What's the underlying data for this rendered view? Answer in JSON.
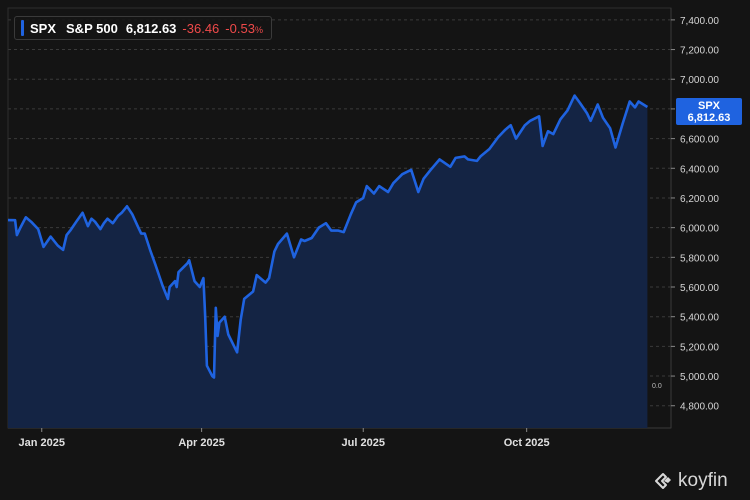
{
  "colors": {
    "background": "#141414",
    "line": "#1f63e0",
    "area": "#142444",
    "grid": "#3a3a3a",
    "negative": "#ef4a4a",
    "tag": "#1f63e0"
  },
  "legend": {
    "ticker": "SPX",
    "name": "S&P 500",
    "last": "6,812.63",
    "change": "-36.46",
    "change_pct": "-0.53",
    "pct_sign": "%"
  },
  "price_tag": {
    "ticker": "SPX",
    "value": "6,812.63"
  },
  "zero_label": "0.0",
  "brand": {
    "name": "koyfin",
    "icon": "koyfin-logo-icon"
  },
  "chart_data": {
    "type": "area",
    "ylim": [
      4650,
      7480
    ],
    "yticks": [
      {
        "value": 4800,
        "label": "4,800.00"
      },
      {
        "value": 5000,
        "label": "5,000.00"
      },
      {
        "value": 5200,
        "label": "5,200.00"
      },
      {
        "value": 5400,
        "label": "5,400.00"
      },
      {
        "value": 5600,
        "label": "5,600.00"
      },
      {
        "value": 5800,
        "label": "5,800.00"
      },
      {
        "value": 6000,
        "label": "6,000.00"
      },
      {
        "value": 6200,
        "label": "6,200.00"
      },
      {
        "value": 6400,
        "label": "6,400.00"
      },
      {
        "value": 6600,
        "label": "6,600.00"
      },
      {
        "value": 6800,
        "label": "6,800.00"
      },
      {
        "value": 7000,
        "label": "7,000.00"
      },
      {
        "value": 7200,
        "label": "7,200.00"
      },
      {
        "value": 7400,
        "label": "7,400.00"
      }
    ],
    "xlim": [
      "2024-12-13",
      "2025-12-10"
    ],
    "xticks": [
      {
        "date": "2025-01-01",
        "label": "Jan 2025"
      },
      {
        "date": "2025-04-01",
        "label": "Apr 2025"
      },
      {
        "date": "2025-07-01",
        "label": "Jul 2025"
      },
      {
        "date": "2025-10-01",
        "label": "Oct 2025"
      }
    ],
    "grid": true,
    "series": [
      {
        "name": "SPX",
        "points": [
          [
            "2024-12-13",
            6051
          ],
          [
            "2024-12-17",
            6050
          ],
          [
            "2024-12-18",
            5950
          ],
          [
            "2024-12-20",
            6000
          ],
          [
            "2024-12-23",
            6070
          ],
          [
            "2024-12-26",
            6040
          ],
          [
            "2024-12-30",
            5990
          ],
          [
            "2025-01-02",
            5870
          ],
          [
            "2025-01-06",
            5940
          ],
          [
            "2025-01-10",
            5880
          ],
          [
            "2025-01-13",
            5850
          ],
          [
            "2025-01-15",
            5950
          ],
          [
            "2025-01-17",
            5980
          ],
          [
            "2025-01-21",
            6050
          ],
          [
            "2025-01-24",
            6100
          ],
          [
            "2025-01-27",
            6010
          ],
          [
            "2025-01-29",
            6060
          ],
          [
            "2025-01-31",
            6040
          ],
          [
            "2025-02-03",
            5990
          ],
          [
            "2025-02-05",
            6030
          ],
          [
            "2025-02-07",
            6060
          ],
          [
            "2025-02-10",
            6030
          ],
          [
            "2025-02-13",
            6080
          ],
          [
            "2025-02-15",
            6100
          ],
          [
            "2025-02-18",
            6144
          ],
          [
            "2025-02-21",
            6090
          ],
          [
            "2025-02-24",
            6010
          ],
          [
            "2025-02-26",
            5960
          ],
          [
            "2025-02-28",
            5960
          ],
          [
            "2025-03-03",
            5850
          ],
          [
            "2025-03-06",
            5750
          ],
          [
            "2025-03-10",
            5610
          ],
          [
            "2025-03-13",
            5520
          ],
          [
            "2025-03-14",
            5600
          ],
          [
            "2025-03-17",
            5640
          ],
          [
            "2025-03-18",
            5600
          ],
          [
            "2025-03-19",
            5700
          ],
          [
            "2025-03-24",
            5760
          ],
          [
            "2025-03-25",
            5780
          ],
          [
            "2025-03-28",
            5640
          ],
          [
            "2025-03-31",
            5600
          ],
          [
            "2025-04-02",
            5660
          ],
          [
            "2025-04-03",
            5400
          ],
          [
            "2025-04-04",
            5070
          ],
          [
            "2025-04-07",
            5000
          ],
          [
            "2025-04-08",
            4990
          ],
          [
            "2025-04-09",
            5460
          ],
          [
            "2025-04-10",
            5270
          ],
          [
            "2025-04-11",
            5360
          ],
          [
            "2025-04-14",
            5400
          ],
          [
            "2025-04-16",
            5280
          ],
          [
            "2025-04-21",
            5160
          ],
          [
            "2025-04-23",
            5380
          ],
          [
            "2025-04-25",
            5520
          ],
          [
            "2025-04-30",
            5570
          ],
          [
            "2025-05-02",
            5680
          ],
          [
            "2025-05-05",
            5650
          ],
          [
            "2025-05-07",
            5630
          ],
          [
            "2025-05-09",
            5660
          ],
          [
            "2025-05-12",
            5840
          ],
          [
            "2025-05-14",
            5890
          ],
          [
            "2025-05-19",
            5960
          ],
          [
            "2025-05-23",
            5800
          ],
          [
            "2025-05-27",
            5920
          ],
          [
            "2025-05-29",
            5910
          ],
          [
            "2025-06-02",
            5930
          ],
          [
            "2025-06-06",
            6000
          ],
          [
            "2025-06-10",
            6030
          ],
          [
            "2025-06-13",
            5980
          ],
          [
            "2025-06-17",
            5980
          ],
          [
            "2025-06-20",
            5970
          ],
          [
            "2025-06-24",
            6090
          ],
          [
            "2025-06-27",
            6170
          ],
          [
            "2025-07-01",
            6200
          ],
          [
            "2025-07-03",
            6280
          ],
          [
            "2025-07-07",
            6230
          ],
          [
            "2025-07-10",
            6280
          ],
          [
            "2025-07-15",
            6240
          ],
          [
            "2025-07-18",
            6300
          ],
          [
            "2025-07-23",
            6360
          ],
          [
            "2025-07-28",
            6390
          ],
          [
            "2025-08-01",
            6240
          ],
          [
            "2025-08-04",
            6330
          ],
          [
            "2025-08-08",
            6390
          ],
          [
            "2025-08-13",
            6460
          ],
          [
            "2025-08-19",
            6410
          ],
          [
            "2025-08-22",
            6470
          ],
          [
            "2025-08-27",
            6480
          ],
          [
            "2025-08-29",
            6460
          ],
          [
            "2025-09-03",
            6450
          ],
          [
            "2025-09-05",
            6480
          ],
          [
            "2025-09-10",
            6530
          ],
          [
            "2025-09-15",
            6610
          ],
          [
            "2025-09-19",
            6660
          ],
          [
            "2025-09-22",
            6690
          ],
          [
            "2025-09-25",
            6600
          ],
          [
            "2025-09-30",
            6690
          ],
          [
            "2025-10-03",
            6720
          ],
          [
            "2025-10-08",
            6750
          ],
          [
            "2025-10-10",
            6550
          ],
          [
            "2025-10-13",
            6650
          ],
          [
            "2025-10-16",
            6630
          ],
          [
            "2025-10-20",
            6730
          ],
          [
            "2025-10-24",
            6790
          ],
          [
            "2025-10-28",
            6890
          ],
          [
            "2025-10-31",
            6840
          ],
          [
            "2025-11-04",
            6770
          ],
          [
            "2025-11-06",
            6720
          ],
          [
            "2025-11-10",
            6830
          ],
          [
            "2025-11-13",
            6740
          ],
          [
            "2025-11-17",
            6670
          ],
          [
            "2025-11-20",
            6540
          ],
          [
            "2025-11-24",
            6700
          ],
          [
            "2025-11-28",
            6850
          ],
          [
            "2025-12-01",
            6810
          ],
          [
            "2025-12-03",
            6850
          ],
          [
            "2025-12-08",
            6812.63
          ]
        ]
      }
    ]
  }
}
